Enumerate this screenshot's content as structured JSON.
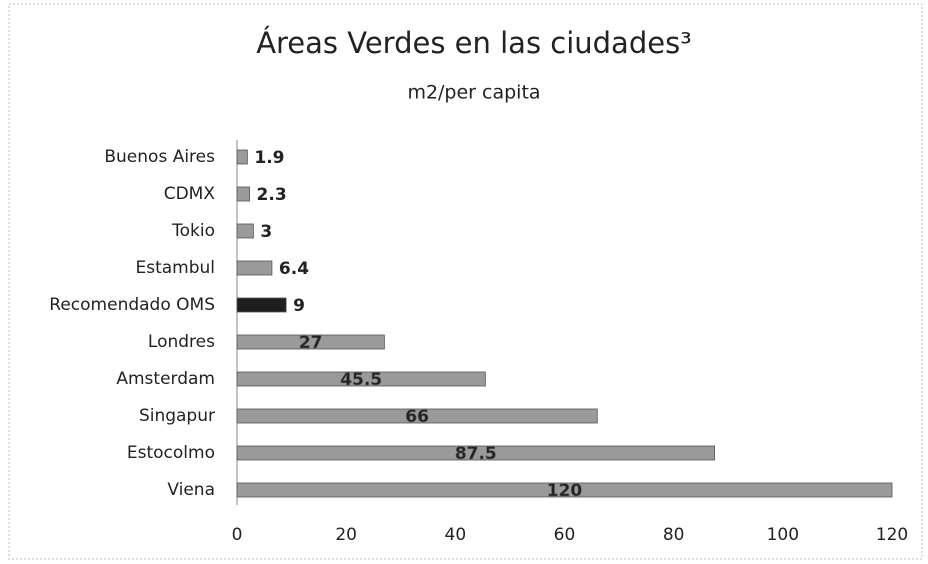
{
  "chart_data": {
    "type": "bar",
    "orientation": "horizontal",
    "title": "Áreas Verdes en las ciudades³",
    "subtitle": "m2/per capita",
    "categories": [
      "Buenos Aires",
      "CDMX",
      "Tokio",
      "Estambul",
      "Recomendado OMS",
      "Londres",
      "Amsterdam",
      "Singapur",
      "Estocolmo",
      "Viena"
    ],
    "values": [
      1.9,
      2.3,
      3,
      6.4,
      9,
      27,
      45.5,
      66,
      87.5,
      120
    ],
    "colors": [
      "#9a9a9a",
      "#9a9a9a",
      "#9a9a9a",
      "#9a9a9a",
      "#1e1e1e",
      "#9a9a9a",
      "#9a9a9a",
      "#9a9a9a",
      "#9a9a9a",
      "#9a9a9a"
    ],
    "xlim": [
      0,
      120
    ],
    "xticks": [
      0,
      20,
      40,
      60,
      80,
      100,
      120
    ],
    "grid": false
  }
}
